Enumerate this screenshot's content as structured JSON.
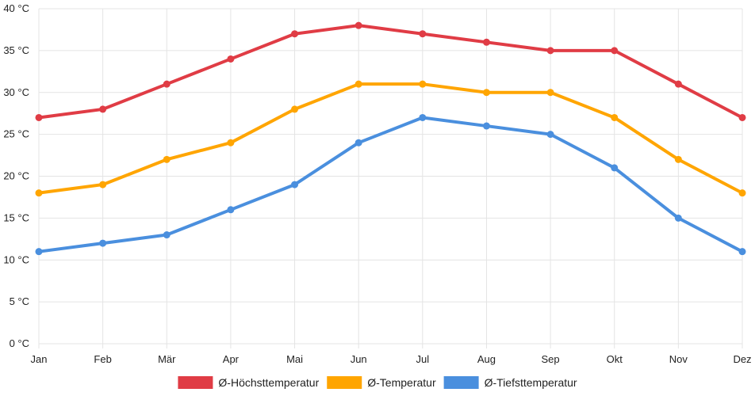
{
  "chart_data": {
    "type": "line",
    "title": "",
    "xlabel": "",
    "ylabel": "",
    "categories": [
      "Jan",
      "Feb",
      "Mär",
      "Apr",
      "Mai",
      "Jun",
      "Jul",
      "Aug",
      "Sep",
      "Okt",
      "Nov",
      "Dez"
    ],
    "y_ticks": [
      "0 °C",
      "5 °C",
      "10 °C",
      "15 °C",
      "20 °C",
      "25 °C",
      "30 °C",
      "35 °C",
      "40 °C"
    ],
    "ylim": [
      0,
      40
    ],
    "grid": true,
    "legend_position": "bottom",
    "series": [
      {
        "name": "Ø-Höchsttemperatur",
        "color": "#e03c45",
        "values": [
          27,
          28,
          31,
          34,
          37,
          38,
          37,
          36,
          35,
          35,
          31,
          27
        ]
      },
      {
        "name": "Ø-Temperatur",
        "color": "#ffa500",
        "values": [
          18,
          19,
          22,
          24,
          28,
          31,
          31,
          30,
          30,
          27,
          22,
          18
        ]
      },
      {
        "name": "Ø-Tiefsttemperatur",
        "color": "#4a8fde",
        "values": [
          11,
          12,
          13,
          16,
          19,
          24,
          27,
          26,
          25,
          21,
          15,
          11
        ]
      }
    ]
  }
}
